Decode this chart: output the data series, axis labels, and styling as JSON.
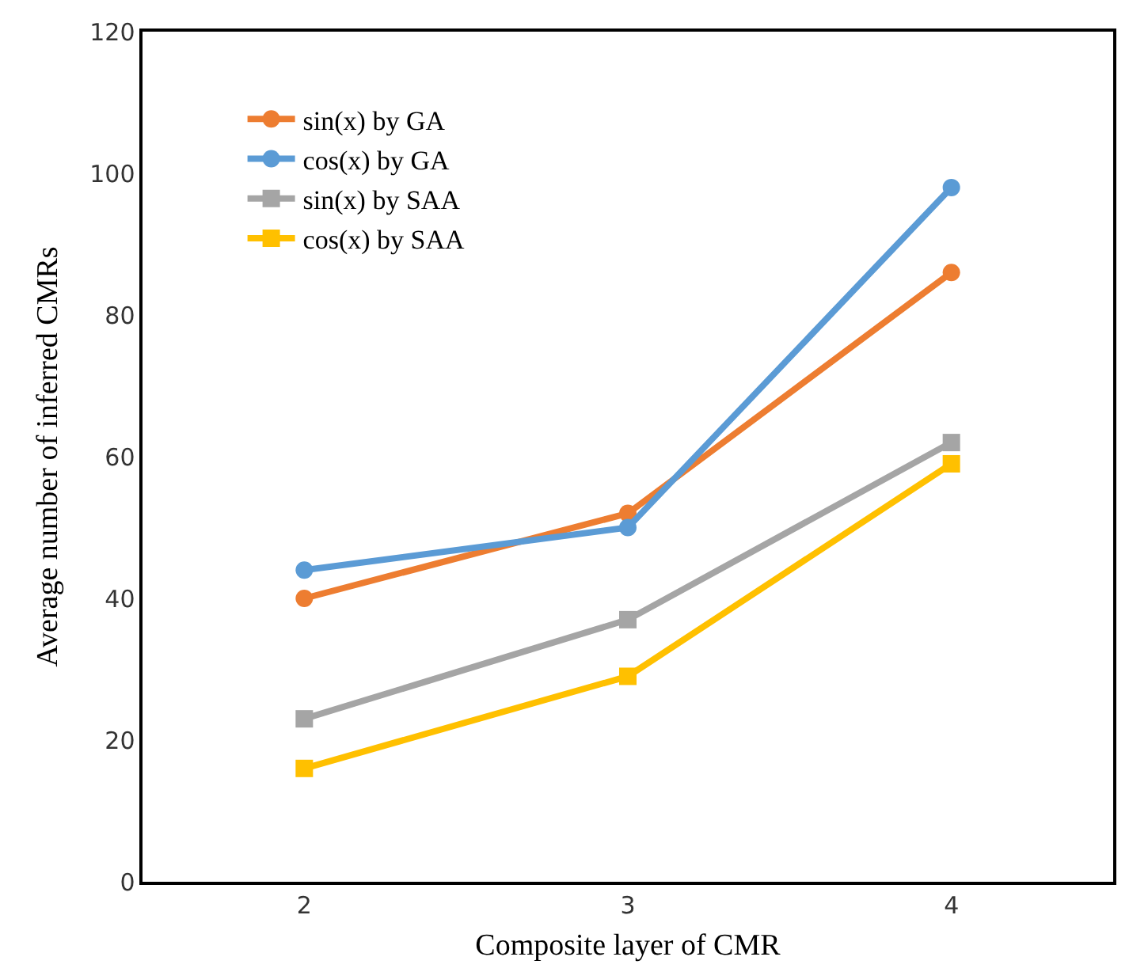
{
  "chart_data": {
    "type": "line",
    "xlabel": "Composite layer of CMR",
    "ylabel": "Average number of inferred CMRs",
    "x": [
      2,
      3,
      4
    ],
    "series": [
      {
        "name": "sin(x) by GA",
        "color": "#ed7d31",
        "marker": "circle",
        "values": [
          40,
          52,
          86
        ]
      },
      {
        "name": "cos(x) by GA",
        "color": "#5b9bd5",
        "marker": "circle",
        "values": [
          44,
          50,
          98
        ]
      },
      {
        "name": "sin(x) by SAA",
        "color": "#a5a5a5",
        "marker": "square",
        "values": [
          23,
          37,
          62
        ]
      },
      {
        "name": "cos(x) by SAA",
        "color": "#ffc000",
        "marker": "square",
        "values": [
          16,
          29,
          59
        ]
      }
    ],
    "xlim": [
      1.5,
      4.5
    ],
    "xticks": [
      2,
      3,
      4
    ],
    "ylim": [
      0,
      120
    ],
    "yticks": [
      0,
      20,
      40,
      60,
      80,
      100,
      120
    ],
    "grid": false,
    "legend": "top left",
    "line_style": "solid"
  }
}
